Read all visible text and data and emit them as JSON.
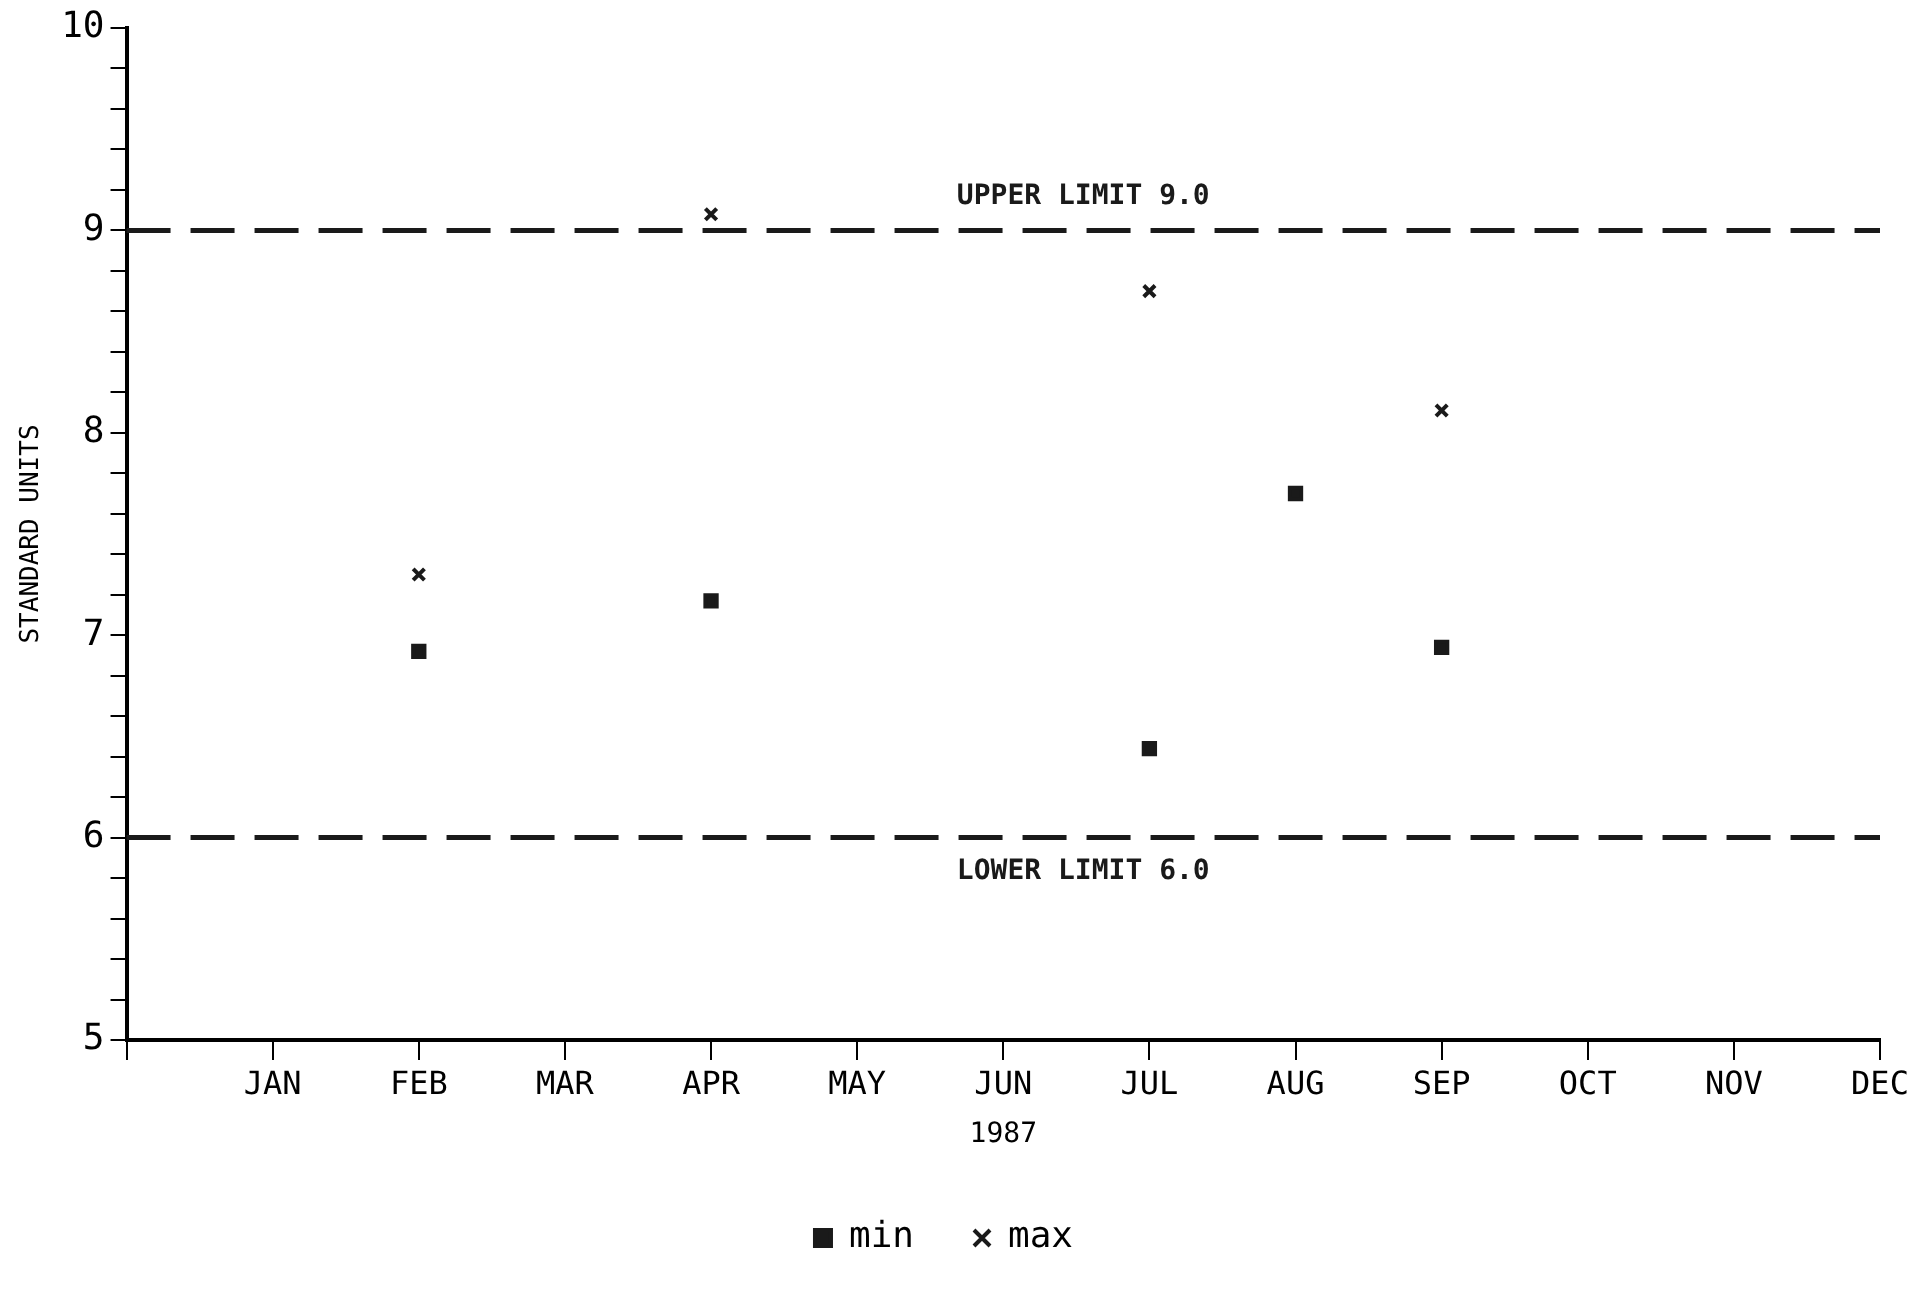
{
  "chart_data": {
    "type": "scatter",
    "xlabel": "1987",
    "ylabel": "STANDARD UNITS",
    "categories": [
      null,
      "JAN",
      "FEB",
      "MAR",
      "APR",
      "MAY",
      "JUN",
      "JUL",
      "AUG",
      "SEP",
      "OCT",
      "NOV",
      "DEC"
    ],
    "series": [
      {
        "name": "min",
        "color": "#1a1a1a",
        "marker": "square",
        "values": [
          null,
          null,
          6.92,
          null,
          7.17,
          null,
          null,
          6.44,
          7.7,
          6.94,
          null,
          null,
          null
        ]
      },
      {
        "name": "max",
        "color": "#1a1a1a",
        "marker": "cross",
        "values": [
          null,
          null,
          7.3,
          null,
          9.08,
          null,
          null,
          8.7,
          null,
          8.11,
          null,
          null,
          null
        ]
      }
    ],
    "ylim": [
      5,
      10
    ],
    "yticks": [
      5,
      {
        "value": 5.2,
        "label": null
      },
      {
        "value": 5.4,
        "label": null
      },
      {
        "value": 5.6,
        "label": null
      },
      {
        "value": 5.8,
        "label": null
      },
      6,
      {
        "value": 6.2,
        "label": null
      },
      {
        "value": 6.4,
        "label": null
      },
      {
        "value": 6.6,
        "label": null
      },
      {
        "value": 6.8,
        "label": null
      },
      7,
      {
        "value": 7.2,
        "label": null
      },
      {
        "value": 7.4,
        "label": null
      },
      {
        "value": 7.6,
        "label": null
      },
      {
        "value": 7.8,
        "label": null
      },
      8,
      {
        "value": 8.2,
        "label": null
      },
      {
        "value": 8.4,
        "label": null
      },
      {
        "value": 8.6,
        "label": null
      },
      {
        "value": 8.8,
        "label": null
      },
      9,
      {
        "value": 9.2,
        "label": null
      },
      {
        "value": 9.4,
        "label": null
      },
      {
        "value": 9.6,
        "label": null
      },
      {
        "value": 9.8,
        "label": null
      },
      10
    ],
    "ref_lines": [
      {
        "axis": "y",
        "value": 9,
        "label": "UPPER LIMIT 9.0",
        "color": "#1a1a1a",
        "line_style": "dashed"
      },
      {
        "axis": "y",
        "value": 6,
        "label": "LOWER LIMIT 6.0",
        "color": "#1a1a1a",
        "line_style": "dashed"
      }
    ],
    "legend": "bottom",
    "grid": false
  }
}
